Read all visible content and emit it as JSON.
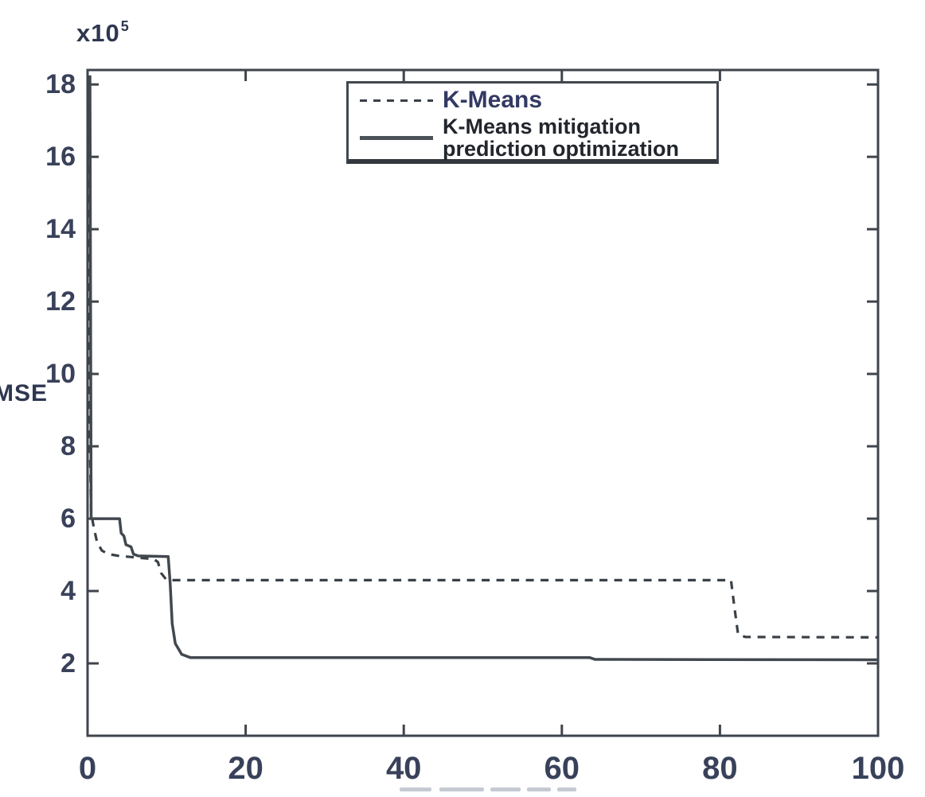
{
  "figure": {
    "offset_label": {
      "base": "x10",
      "exponent": "5"
    },
    "ylabel": "MSE"
  },
  "legend": {
    "entry1_label": "K-Means",
    "entry2_label_line1": "K-Means mitigation",
    "entry2_label_line2": "prediction optimization"
  },
  "colors": {
    "axis": "#3f454c",
    "curve_dashed": "#3a4047",
    "curve_solid": "#42484f",
    "tick_label": "#39415a",
    "legend_text_primary": "#323a63",
    "legend_text_secondary": "#22262c",
    "background": "#ffffff"
  },
  "chart_data": {
    "type": "line",
    "title": "",
    "xlabel": "",
    "ylabel": "MSE",
    "y_unit": "x10^5",
    "xlim": [
      0,
      100
    ],
    "ylim": [
      0,
      18.4
    ],
    "x_ticks": [
      0,
      20,
      40,
      60,
      80,
      100
    ],
    "y_ticks": [
      2,
      4,
      6,
      8,
      10,
      12,
      14,
      16,
      18
    ],
    "grid": false,
    "legend_position": "top-center-inside",
    "series": [
      {
        "name": "K-Means",
        "style": "dashed",
        "points": [
          [
            0.2,
            18.2
          ],
          [
            0.3,
            8.0
          ],
          [
            0.45,
            6.15
          ],
          [
            0.8,
            5.75
          ],
          [
            1.2,
            5.35
          ],
          [
            1.8,
            5.12
          ],
          [
            2.6,
            5.02
          ],
          [
            4.0,
            4.97
          ],
          [
            6.0,
            4.93
          ],
          [
            8.4,
            4.88
          ],
          [
            8.9,
            4.8
          ],
          [
            9.3,
            4.5
          ],
          [
            9.9,
            4.33
          ],
          [
            10.6,
            4.3
          ],
          [
            81.4,
            4.3
          ],
          [
            81.8,
            3.6
          ],
          [
            82.3,
            2.8
          ],
          [
            83.2,
            2.73
          ],
          [
            100,
            2.72
          ]
        ]
      },
      {
        "name": "K-Means mitigation prediction optimization",
        "style": "solid",
        "points": [
          [
            0.3,
            18.25
          ],
          [
            0.45,
            6.0
          ],
          [
            4.05,
            6.0
          ],
          [
            4.25,
            5.6
          ],
          [
            4.6,
            5.52
          ],
          [
            4.85,
            5.28
          ],
          [
            5.5,
            5.22
          ],
          [
            5.8,
            5.02
          ],
          [
            6.4,
            4.97
          ],
          [
            10.2,
            4.95
          ],
          [
            10.45,
            4.2
          ],
          [
            10.7,
            3.1
          ],
          [
            11.1,
            2.55
          ],
          [
            11.9,
            2.25
          ],
          [
            13.0,
            2.16
          ],
          [
            63.5,
            2.16
          ],
          [
            64.2,
            2.11
          ],
          [
            100,
            2.1
          ]
        ]
      }
    ]
  }
}
